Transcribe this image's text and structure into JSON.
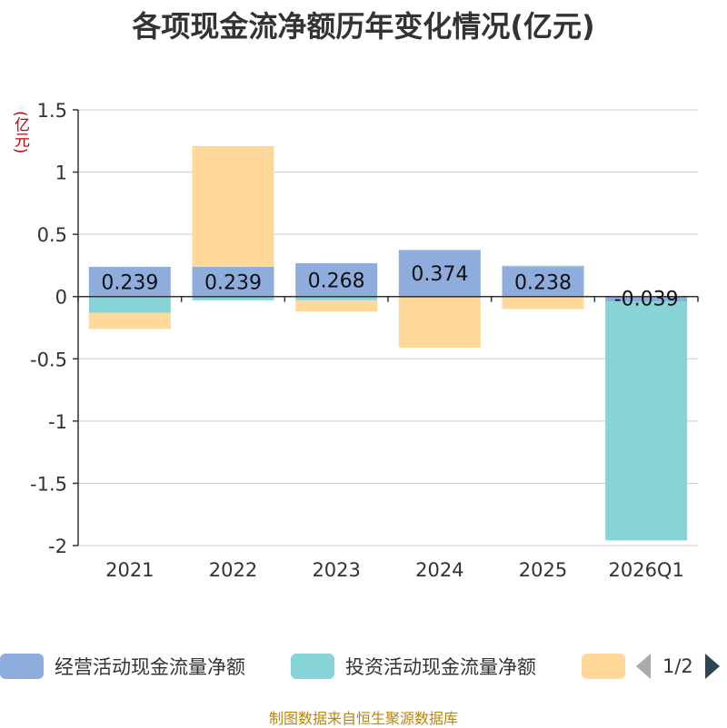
{
  "title": "各项现金流净额历年变化情况(亿元)",
  "unit": "(亿元)",
  "source": "制图数据来自恒生聚源数据库",
  "pager": {
    "text": "1/2"
  },
  "legend": [
    {
      "name": "经营活动现金流量净额",
      "color": "#8eacdc"
    },
    {
      "name": "投资活动现金流量净额",
      "color": "#86d4d7"
    },
    {
      "name": "",
      "color": "#ffd89a"
    }
  ],
  "chart_data": {
    "type": "bar",
    "stacked": true,
    "categories": [
      "2021",
      "2022",
      "2023",
      "2024",
      "2025",
      "2026Q1"
    ],
    "ylim": [
      -2,
      1.5
    ],
    "yticks": [
      1.5,
      1,
      0.5,
      0,
      -0.5,
      -1,
      -1.5,
      -2
    ],
    "ytick_labels": [
      "1.5",
      "1",
      "0.5",
      "0",
      "-0.5",
      "-1",
      "-1.5",
      "-2"
    ],
    "grid": true,
    "series": [
      {
        "name": "经营活动现金流量净额",
        "color": "#8eacdc",
        "values": [
          0.239,
          0.239,
          0.268,
          0.374,
          0.238,
          -0.039
        ]
      },
      {
        "name": "投资活动现金流量净额",
        "color": "#86d4d7",
        "values": [
          -0.13,
          -0.03,
          -0.03,
          -0.01,
          0.01,
          -1.92
        ]
      },
      {
        "color": "#ffd89a",
        "values": [
          -0.13,
          0.97,
          -0.09,
          -0.4,
          -0.1,
          0
        ]
      }
    ],
    "data_labels": [
      "0.239",
      "0.239",
      "0.268",
      "0.374",
      "0.238",
      "-0.039"
    ]
  }
}
